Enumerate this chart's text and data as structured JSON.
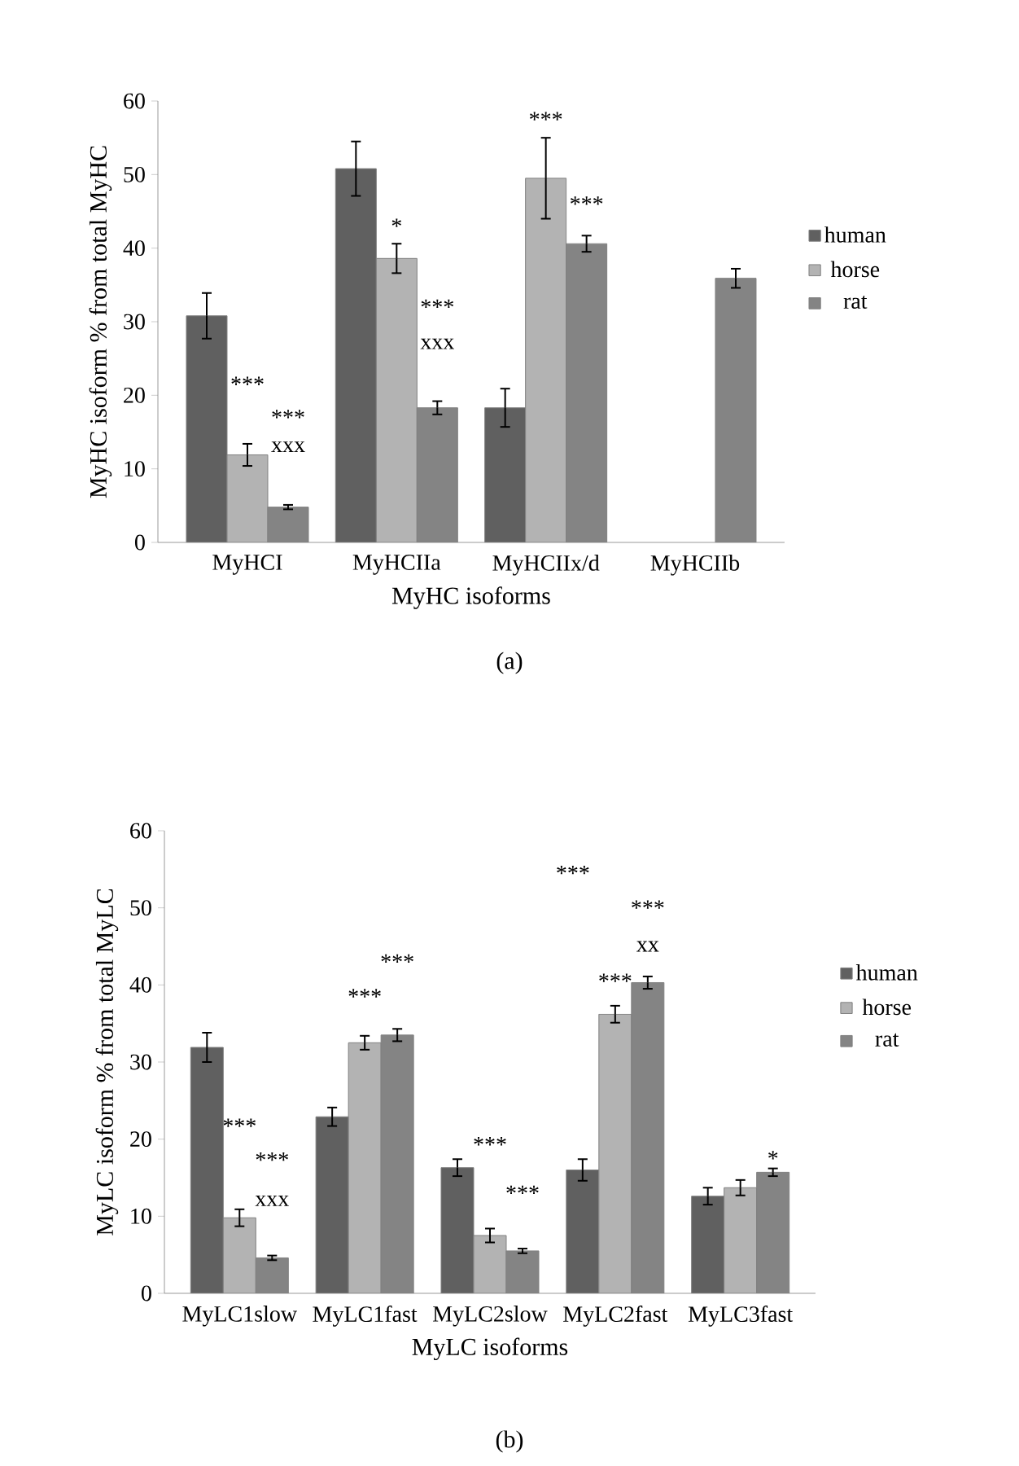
{
  "chart_data": [
    {
      "type": "bar",
      "categories": [
        "MyHCI",
        "MyHCIIa",
        "MyHCIIx/d",
        "MyHCIIb"
      ],
      "xlabel": "MyHC isoforms",
      "ylabel": "MyHC isoform % from total MyHC",
      "series": [
        {
          "name": "human",
          "color": "#606060",
          "values": [
            30.8,
            50.8,
            18.3,
            null
          ],
          "errors": [
            3.1,
            3.7,
            2.6,
            null
          ]
        },
        {
          "name": "horse",
          "color": "#b3b3b3",
          "values": [
            11.9,
            38.6,
            49.5,
            null
          ],
          "errors": [
            1.5,
            2.0,
            5.5,
            null
          ]
        },
        {
          "name": "rat",
          "color": "#848484",
          "values": [
            4.8,
            18.3,
            40.6,
            35.9
          ],
          "errors": [
            0.3,
            0.9,
            1.1,
            1.3
          ]
        }
      ],
      "ylim": [
        0,
        60
      ],
      "yticks": [
        0,
        10,
        20,
        30,
        40,
        50,
        60
      ],
      "legend": "right",
      "annotations": [
        "***",
        "***",
        "xxx",
        "*",
        "***",
        "xxx",
        "***",
        "***",
        "(a)"
      ]
    },
    {
      "type": "bar",
      "categories": [
        "MyLC1slow",
        "MyLC1fast",
        "MyLC2slow",
        "MyLC2fast",
        "MyLC3fast"
      ],
      "xlabel": "MyLC isoforms",
      "ylabel": "MyLC isoform % from total MyLC",
      "series": [
        {
          "name": "human",
          "color": "#606060",
          "values": [
            31.9,
            22.9,
            16.3,
            16.0,
            12.6
          ],
          "errors": [
            1.9,
            1.2,
            1.1,
            1.4,
            1.1
          ]
        },
        {
          "name": "horse",
          "color": "#b3b3b3",
          "values": [
            9.8,
            32.5,
            7.5,
            36.2,
            13.7
          ],
          "errors": [
            1.1,
            0.9,
            0.9,
            1.1,
            1.0
          ]
        },
        {
          "name": "rat",
          "color": "#848484",
          "values": [
            4.6,
            33.5,
            5.5,
            40.3,
            15.7
          ],
          "errors": [
            0.3,
            0.8,
            0.3,
            0.8,
            0.5
          ]
        }
      ],
      "ylim": [
        0,
        60
      ],
      "yticks": [
        0,
        10,
        20,
        30,
        40,
        50,
        60
      ],
      "legend": "right",
      "annotations": [
        "***",
        "***",
        "xxx",
        "***",
        "***",
        "***",
        "***",
        "***",
        "***",
        "xx",
        "***",
        "*",
        "(b)"
      ]
    }
  ]
}
